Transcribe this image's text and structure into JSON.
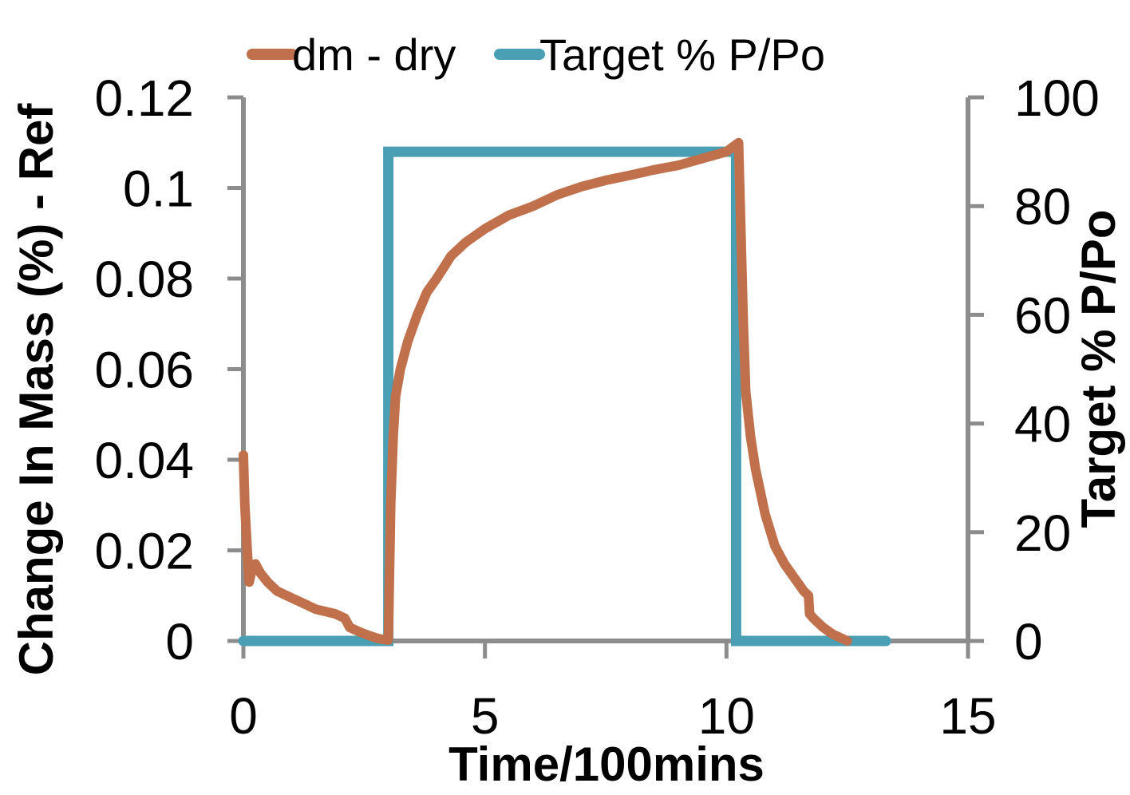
{
  "chart_data": {
    "type": "line",
    "xlabel": "Time/100mins",
    "ylabel": "Change In Mass (%) - Ref",
    "y2label": "Target % P/Po",
    "xlim": [
      0,
      15
    ],
    "ylim": [
      0,
      0.12
    ],
    "y2lim": [
      0,
      100
    ],
    "x_ticks": [
      "0",
      "5",
      "10",
      "15"
    ],
    "y_ticks": [
      "0",
      "0.02",
      "0.04",
      "0.06",
      "0.08",
      "0.1",
      "0.12"
    ],
    "y2_ticks": [
      "0",
      "20",
      "40",
      "60",
      "80",
      "100"
    ],
    "grid": false,
    "legend_position": "top",
    "series": [
      {
        "name": "dm - dry",
        "axis": "left",
        "color": "#c0714b",
        "x": [
          0.0,
          0.03,
          0.08,
          0.12,
          0.18,
          0.25,
          0.35,
          0.5,
          0.7,
          0.9,
          1.1,
          1.3,
          1.5,
          1.7,
          1.9,
          2.1,
          2.2,
          2.4,
          2.6,
          2.8,
          3.0,
          3.05,
          3.1,
          3.15,
          3.25,
          3.4,
          3.6,
          3.8,
          4.0,
          4.3,
          4.6,
          5.0,
          5.5,
          6.0,
          6.5,
          7.0,
          7.5,
          8.0,
          8.5,
          9.0,
          9.5,
          10.0,
          10.25,
          10.3,
          10.35,
          10.4,
          10.5,
          10.6,
          10.8,
          11.0,
          11.2,
          11.4,
          11.6,
          11.7,
          11.72,
          11.8,
          12.0,
          12.2,
          12.5
        ],
        "values": [
          0.041,
          0.03,
          0.02,
          0.013,
          0.016,
          0.017,
          0.015,
          0.013,
          0.011,
          0.01,
          0.009,
          0.008,
          0.007,
          0.0065,
          0.006,
          0.005,
          0.003,
          0.002,
          0.0012,
          0.0005,
          0.0002,
          0.03,
          0.045,
          0.054,
          0.06,
          0.066,
          0.072,
          0.077,
          0.08,
          0.085,
          0.088,
          0.091,
          0.094,
          0.096,
          0.0985,
          0.1003,
          0.1017,
          0.1028,
          0.104,
          0.105,
          0.1065,
          0.108,
          0.11,
          0.09,
          0.07,
          0.055,
          0.045,
          0.038,
          0.028,
          0.021,
          0.017,
          0.014,
          0.011,
          0.01,
          0.006,
          0.005,
          0.003,
          0.0015,
          0.0
        ]
      },
      {
        "name": "Target % P/Po",
        "axis": "right",
        "color": "#4a9fb5",
        "x": [
          0.0,
          3.0,
          3.0,
          10.2,
          10.2,
          13.3
        ],
        "values": [
          0,
          0,
          90,
          90,
          0,
          0
        ]
      }
    ]
  }
}
